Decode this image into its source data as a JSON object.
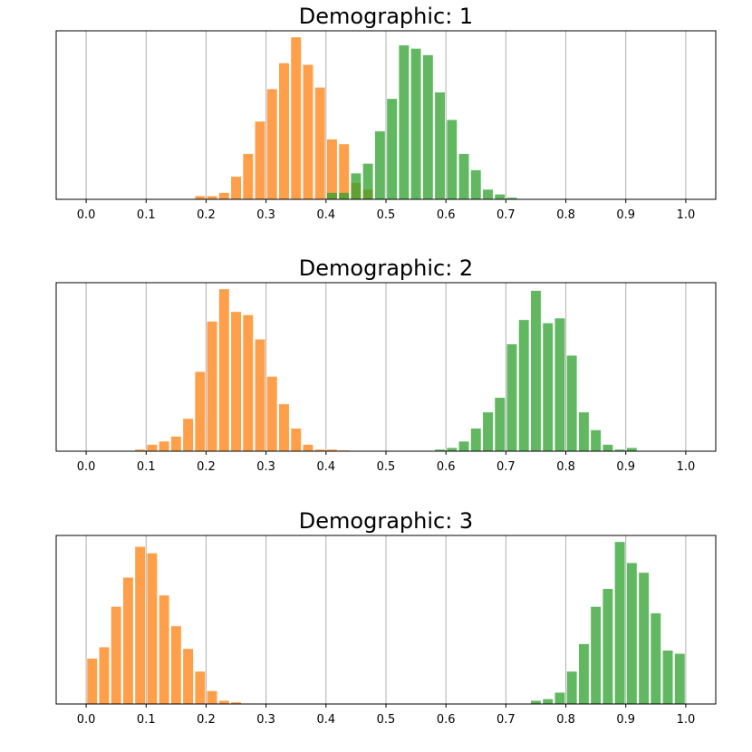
{
  "chart_data": [
    {
      "type": "bar",
      "title": "Demographic: 1",
      "xlabel": "",
      "ylabel": "",
      "xlim": [
        -0.05,
        1.05
      ],
      "xticks": [
        "0.0",
        "0.1",
        "0.2",
        "0.3",
        "0.4",
        "0.5",
        "0.6",
        "0.7",
        "0.8",
        "0.9",
        "1.0"
      ],
      "yticks_visible": false,
      "grid": "x",
      "series": [
        {
          "color": "#ff7f0e",
          "x": [
            0.19,
            0.21,
            0.23,
            0.25,
            0.27,
            0.29,
            0.31,
            0.33,
            0.35,
            0.37,
            0.39,
            0.41,
            0.43,
            0.45,
            0.47
          ],
          "values": [
            2,
            2,
            4,
            14,
            28,
            48,
            68,
            84,
            100,
            83,
            69,
            37,
            34,
            10,
            6
          ]
        },
        {
          "color": "#2ca02c",
          "x": [
            0.41,
            0.43,
            0.45,
            0.47,
            0.49,
            0.51,
            0.53,
            0.55,
            0.57,
            0.59,
            0.61,
            0.63,
            0.65,
            0.67,
            0.69,
            0.71
          ],
          "values": [
            4,
            4,
            16,
            22,
            42,
            62,
            95,
            93,
            89,
            66,
            49,
            28,
            18,
            6,
            3,
            1
          ]
        }
      ]
    },
    {
      "type": "bar",
      "title": "Demographic: 2",
      "xlabel": "",
      "ylabel": "",
      "xlim": [
        -0.05,
        1.05
      ],
      "xticks": [
        "0.0",
        "0.1",
        "0.2",
        "0.3",
        "0.4",
        "0.5",
        "0.6",
        "0.7",
        "0.8",
        "0.9",
        "1.0"
      ],
      "yticks_visible": false,
      "grid": "x",
      "series": [
        {
          "color": "#ff7f0e",
          "x": [
            0.09,
            0.11,
            0.13,
            0.15,
            0.17,
            0.19,
            0.21,
            0.23,
            0.25,
            0.27,
            0.29,
            0.31,
            0.33,
            0.35,
            0.37,
            0.39,
            0.41,
            0.43
          ],
          "values": [
            1,
            4,
            6,
            9,
            20,
            49,
            80,
            100,
            86,
            84,
            69,
            46,
            29,
            14,
            4,
            1,
            1,
            0.5
          ]
        },
        {
          "color": "#2ca02c",
          "x": [
            0.59,
            0.61,
            0.63,
            0.65,
            0.67,
            0.69,
            0.71,
            0.73,
            0.75,
            0.77,
            0.79,
            0.81,
            0.83,
            0.85,
            0.87,
            0.89,
            0.91
          ],
          "values": [
            1,
            2,
            6,
            14,
            24,
            33,
            66,
            81,
            99,
            79,
            82,
            59,
            24,
            13,
            4,
            1,
            2
          ]
        }
      ]
    },
    {
      "type": "bar",
      "title": "Demographic: 3",
      "xlabel": "",
      "ylabel": "",
      "xlim": [
        -0.05,
        1.05
      ],
      "xticks": [
        "0.0",
        "0.1",
        "0.2",
        "0.3",
        "0.4",
        "0.5",
        "0.6",
        "0.7",
        "0.8",
        "0.9",
        "1.0"
      ],
      "yticks_visible": false,
      "grid": "x",
      "series": [
        {
          "color": "#ff7f0e",
          "x": [
            0.01,
            0.03,
            0.05,
            0.07,
            0.09,
            0.11,
            0.13,
            0.15,
            0.17,
            0.19,
            0.21,
            0.23,
            0.25
          ],
          "values": [
            28,
            35,
            60,
            78,
            97,
            93,
            67,
            48,
            34,
            20,
            8,
            2,
            1
          ]
        },
        {
          "color": "#2ca02c",
          "x": [
            0.75,
            0.77,
            0.79,
            0.81,
            0.83,
            0.85,
            0.87,
            0.89,
            0.91,
            0.93,
            0.95,
            0.97,
            0.99
          ],
          "values": [
            2,
            3,
            7,
            20,
            37,
            60,
            71,
            100,
            87,
            81,
            56,
            33,
            31
          ]
        }
      ]
    }
  ]
}
